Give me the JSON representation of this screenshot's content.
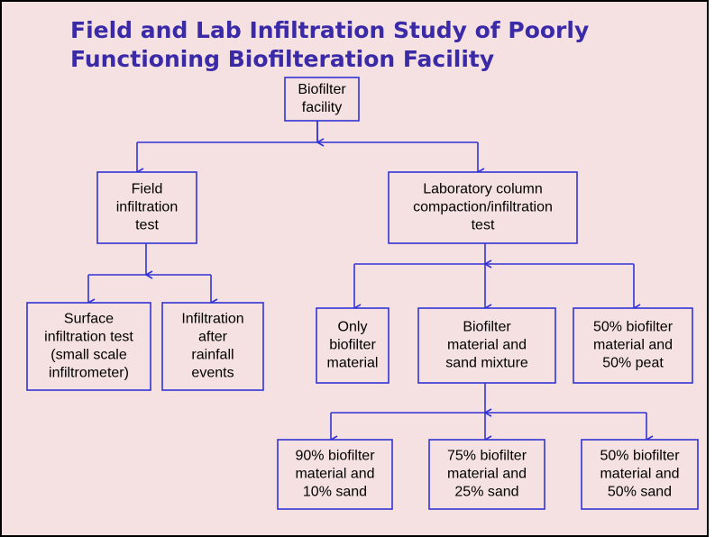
{
  "header": {
    "title": [
      "Field and Lab Infiltration Study of Poorly",
      "Functioning  Biofilteration Facility"
    ]
  },
  "nodes": [
    {
      "label": [
        "Biofilter",
        "facility"
      ]
    },
    {
      "label": [
        "Field",
        "infiltration",
        "test"
      ]
    },
    {
      "label": [
        "Laboratory column",
        "compaction/infiltration",
        "test"
      ]
    },
    {
      "label": [
        "Surface",
        "infiltration test",
        "(small scale",
        "infiltrometer)"
      ]
    },
    {
      "label": [
        "Infiltration",
        "after",
        "rainfall",
        "events"
      ]
    },
    {
      "label": [
        "Only",
        "biofilter",
        "material"
      ]
    },
    {
      "label": [
        "Biofilter",
        "material and",
        "sand mixture"
      ]
    },
    {
      "label": [
        "50% biofilter",
        "material and",
        "50% peat"
      ]
    },
    {
      "label": [
        "90% biofilter",
        "material and",
        "10% sand"
      ]
    },
    {
      "label": [
        "75% biofilter",
        "material and",
        "25% sand"
      ]
    },
    {
      "label": [
        "50% biofilter",
        "material and",
        "50% sand"
      ]
    }
  ]
}
